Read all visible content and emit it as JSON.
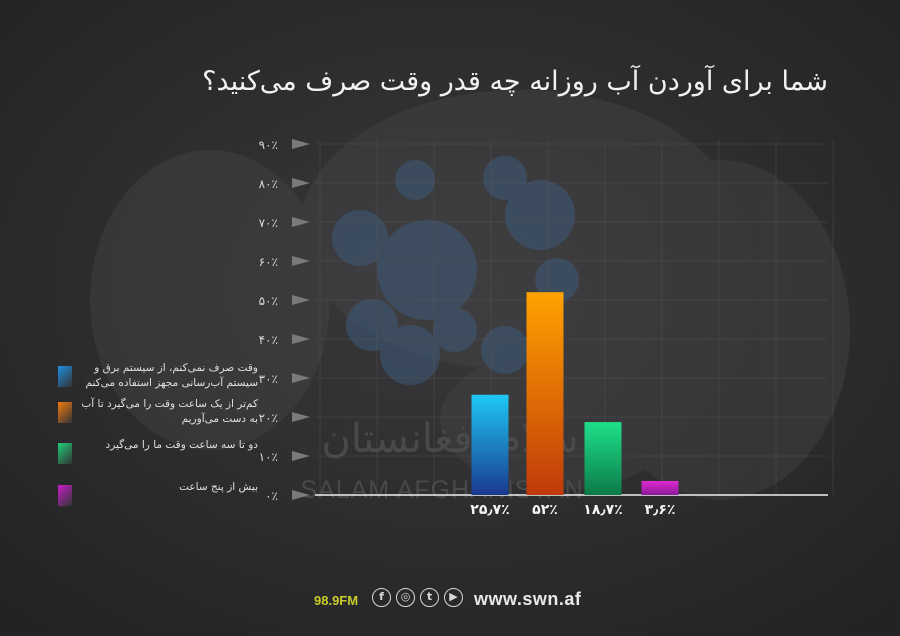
{
  "chart_data": {
    "type": "bar",
    "title": "شما برای آوردن آب روزانه چه قدر وقت صرف می‌کنید؟",
    "ylim": [
      0,
      90
    ],
    "y_ticks": [
      "۰٪",
      "۱۰٪",
      "۲۰٪",
      "۳۰٪",
      "۴۰٪",
      "۵۰٪",
      "۶۰٪",
      "۷۰٪",
      "۸۰٪",
      "۹۰٪"
    ],
    "y_tick_values": [
      0,
      10,
      20,
      30,
      40,
      50,
      60,
      70,
      80,
      90
    ],
    "categories": [
      "وقت صرف نمی‌کنم، از سیستم برق و سیستم آب‌رسانی مجهز استفاده می‌کنم",
      "کم‌تر از یک ساعت وقت را می‌گیرد تا آب به دست می‌آوریم",
      "دو تا سه ساعت وقت ما را می‌گیرد",
      "بیش از پنج ساعت"
    ],
    "values": [
      25.7,
      52,
      18.7,
      3.6
    ],
    "value_labels": [
      "۲۵٫۷٪",
      "۵۲٪",
      "۱۸٫۷٪",
      "۳٫۶٪"
    ],
    "colors": [
      [
        "#1ec8f4",
        "#1a3a8f"
      ],
      [
        "#ffa300",
        "#c03a0a"
      ],
      [
        "#1fe08a",
        "#0c7a48"
      ],
      [
        "#e02ad2",
        "#8a1a9a"
      ]
    ],
    "grid": true,
    "legend_position": "left"
  },
  "legend": [
    {
      "text": "وقت صرف نمی‌کنم، از سیستم برق و سیستم آب‌رسانی مجهز استفاده می‌کنم",
      "color": "#1e8fe0"
    },
    {
      "text": "کم‌تر از یک ساعت وقت را می‌گیرد تا آب به دست می‌آوریم",
      "color": "#f07a10"
    },
    {
      "text": "دو تا سه ساعت وقت ما را می‌گیرد",
      "color": "#1fcf7a"
    },
    {
      "text": "بیش از پنج ساعت",
      "color": "#c81fc8"
    }
  ],
  "footer": {
    "frequency": "98.9FM",
    "website": "www.swn.af",
    "icons": [
      "facebook-icon",
      "instagram-icon",
      "twitter-icon",
      "youtube-icon"
    ]
  },
  "watermark": {
    "latin": "SALAM AFGHANISTAN",
    "persian": "سلام افغانستان"
  }
}
